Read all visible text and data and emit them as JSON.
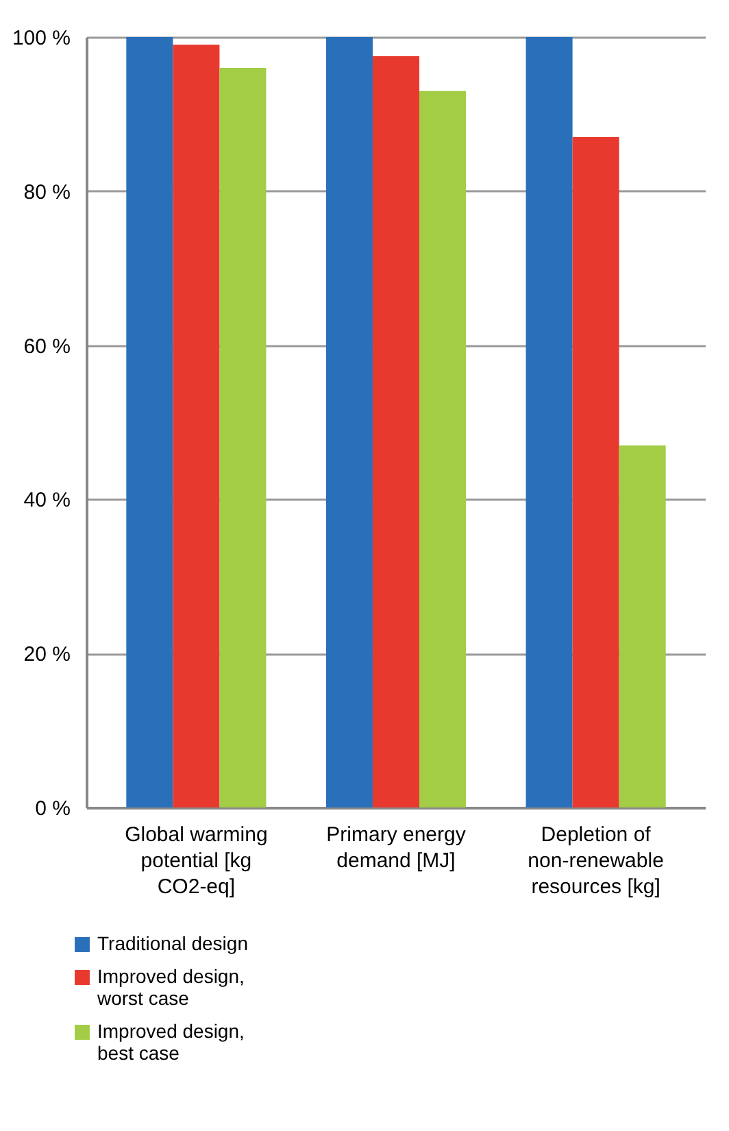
{
  "chart_data": {
    "type": "bar",
    "categories": [
      "Global warming\npotential [kg\nCO2-eq]",
      "Primary energy\ndemand [MJ]",
      "Depletion of\nnon-renewable\nresources [kg]"
    ],
    "series": [
      {
        "name": "Traditional design",
        "color": "#2a6fba",
        "values": [
          100,
          100,
          100
        ]
      },
      {
        "name": "Improved design,\nworst case",
        "color": "#e8392f",
        "values": [
          99,
          97.5,
          87
        ]
      },
      {
        "name": "Improved design,\nbest case",
        "color": "#a3cd45",
        "values": [
          96,
          93,
          47
        ]
      }
    ],
    "ylim": [
      0,
      100
    ],
    "yticks": [
      {
        "value": 0,
        "label": "0 %"
      },
      {
        "value": 20,
        "label": "20 %"
      },
      {
        "value": 40,
        "label": "40 %"
      },
      {
        "value": 60,
        "label": "60 %"
      },
      {
        "value": 80,
        "label": "80 %"
      },
      {
        "value": 100,
        "label": "100 %"
      }
    ],
    "grid": "y",
    "legend": "bottom left"
  }
}
